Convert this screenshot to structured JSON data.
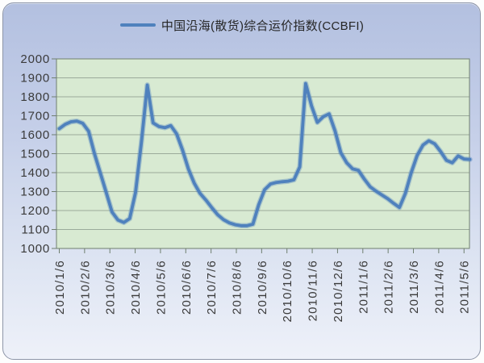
{
  "legend": {
    "label": "中国沿海(散货)综合运价指数(CCBFI)"
  },
  "colors": {
    "line": "#4f81bd",
    "plot_bg": "#d8ead2",
    "grid": "#9bab9b",
    "axis": "#6f7f6f",
    "text": "#3a3a3a",
    "frame_border": "#8e96a8",
    "frame_top": "#b3c0e0",
    "frame_bottom": "#eef1f9"
  },
  "chart_data": {
    "type": "line",
    "title": "",
    "legend_position": "top",
    "grid": true,
    "ylim": [
      1000,
      2000
    ],
    "y_ticks": [
      2000,
      1900,
      1800,
      1700,
      1600,
      1500,
      1400,
      1300,
      1200,
      1100,
      1000
    ],
    "x_labels": [
      "2010/1/6",
      "2010/2/6",
      "2010/3/6",
      "2010/4/6",
      "2010/5/6",
      "2010/6/6",
      "2010/7/6",
      "2010/8/6",
      "2010/9/6",
      "2010/10/6",
      "2010/11/6",
      "2010/12/6",
      "2011/1/6",
      "2011/2/6",
      "2011/3/6",
      "2011/4/6",
      "2011/5/6"
    ],
    "x_cadence": "weekly",
    "series": [
      {
        "name": "中国沿海(散货)综合运价指数(CCBFI)",
        "color": "#4f81bd",
        "values": [
          1632,
          1655,
          1668,
          1672,
          1660,
          1618,
          1500,
          1398,
          1295,
          1192,
          1150,
          1137,
          1158,
          1295,
          1560,
          1862,
          1662,
          1643,
          1637,
          1648,
          1605,
          1520,
          1420,
          1345,
          1290,
          1255,
          1215,
          1178,
          1152,
          1135,
          1125,
          1120,
          1120,
          1128,
          1230,
          1310,
          1340,
          1348,
          1352,
          1355,
          1362,
          1430,
          1870,
          1752,
          1665,
          1695,
          1710,
          1620,
          1505,
          1452,
          1420,
          1412,
          1366,
          1325,
          1302,
          1282,
          1262,
          1238,
          1216,
          1290,
          1400,
          1490,
          1545,
          1568,
          1552,
          1512,
          1465,
          1452,
          1488,
          1472,
          1470
        ]
      }
    ]
  }
}
